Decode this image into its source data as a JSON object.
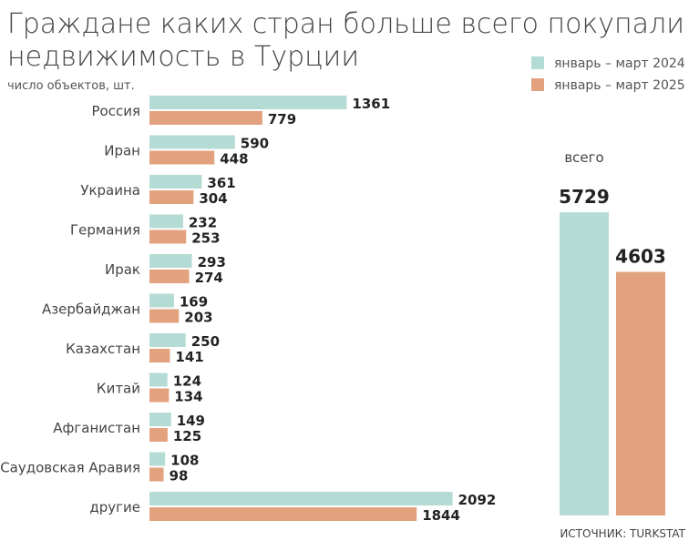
{
  "chart_data": {
    "type": "bar",
    "orientation": "horizontal",
    "title_line1": "Граждане каких стран больше всего покупали",
    "title_line2": "недвижимость в Турции",
    "ylabel": "число объектов, шт.",
    "categories": [
      "Россия",
      "Иран",
      "Украина",
      "Германия",
      "Ирак",
      "Азербайджан",
      "Казахстан",
      "Китай",
      "Афганистан",
      "Саудовская Аравия",
      "другие"
    ],
    "series": [
      {
        "name": "январь – март 2024",
        "color": "#b5dbd5",
        "values": [
          1361,
          590,
          361,
          232,
          293,
          169,
          250,
          124,
          149,
          108,
          2092
        ]
      },
      {
        "name": "январь – март 2025",
        "color": "#e3a27e",
        "values": [
          779,
          448,
          304,
          253,
          274,
          203,
          141,
          134,
          125,
          98,
          1844
        ]
      }
    ],
    "totals": {
      "label": "всего",
      "values": [
        5729,
        4603
      ]
    },
    "legend_position": "top-right",
    "source": "ИСТОЧНИК: TURKSTAT"
  }
}
